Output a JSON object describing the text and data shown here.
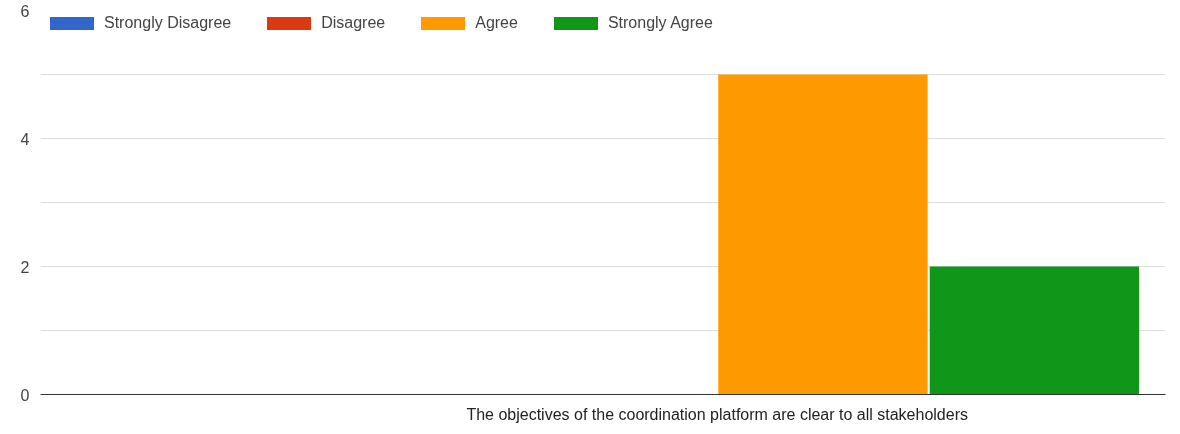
{
  "chart_data": {
    "type": "bar",
    "categories": [
      "The objectives of the coordination platform are clear to all stakeholders"
    ],
    "series": [
      {
        "name": "Strongly Disagree",
        "color": "#3366cc",
        "values": [
          0
        ]
      },
      {
        "name": "Disagree",
        "color": "#dc3912",
        "values": [
          0
        ]
      },
      {
        "name": "Agree",
        "color": "#ff9900",
        "values": [
          5
        ]
      },
      {
        "name": "Strongly Agree",
        "color": "#109618",
        "values": [
          2
        ]
      }
    ],
    "ylim": [
      0,
      6
    ],
    "yticks": [
      0,
      {
        "value": 1,
        "label": null
      },
      2,
      {
        "value": 3,
        "label": null
      },
      4,
      {
        "value": 5,
        "label": null
      },
      6
    ],
    "grid": "y",
    "legend": "top left"
  }
}
